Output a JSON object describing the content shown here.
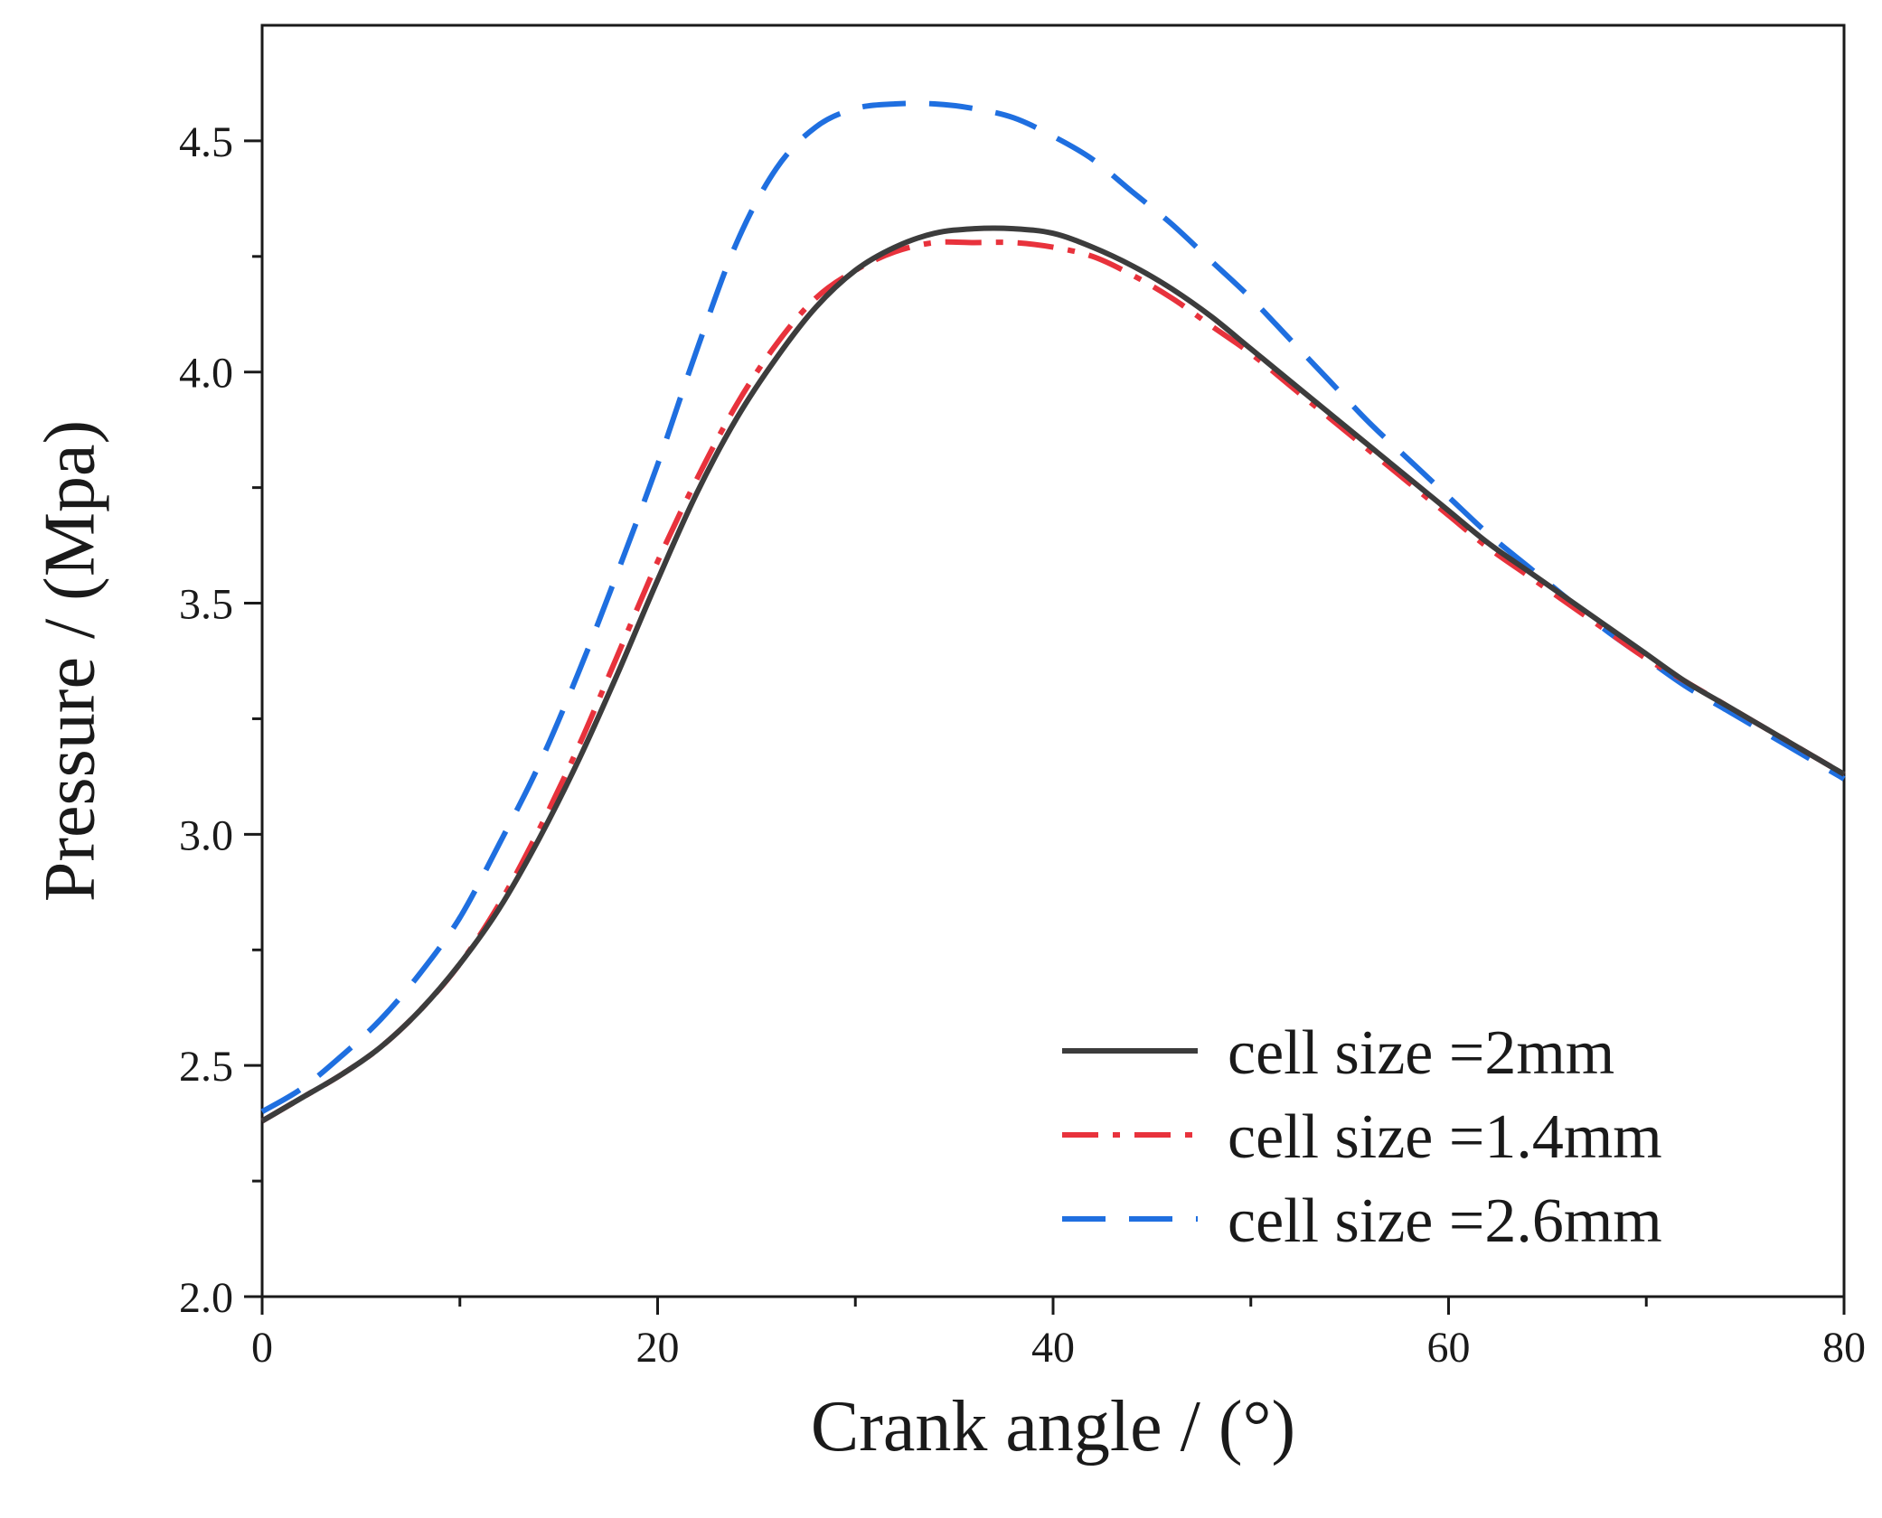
{
  "chart_data": {
    "type": "line",
    "title": "",
    "xlabel": "Crank angle / (°)",
    "ylabel": "Pressure / (Mpa)",
    "xlim": [
      0,
      80
    ],
    "ylim": [
      2.0,
      4.75
    ],
    "xticks": [
      0,
      20,
      40,
      60,
      80
    ],
    "xtick_labels": [
      "0",
      "20",
      "40",
      "60",
      "80"
    ],
    "yticks": [
      2.0,
      2.5,
      3.0,
      3.5,
      4.0,
      4.5
    ],
    "ytick_labels": [
      "2.0",
      "2.5",
      "3.0",
      "3.5",
      "4.0",
      "4.5"
    ],
    "grid": false,
    "legend_position": "bottom-right",
    "series": [
      {
        "name": "cell size =2mm",
        "color": "#3c3c3c",
        "style": "solid",
        "x": [
          0,
          2,
          4,
          6,
          8,
          10,
          12,
          14,
          16,
          18,
          20,
          22,
          24,
          26,
          28,
          30,
          32,
          34,
          36,
          38,
          40,
          42,
          44,
          46,
          48,
          50,
          52,
          54,
          56,
          58,
          60,
          62,
          64,
          66,
          68,
          70,
          72,
          74,
          76,
          78,
          80
        ],
        "values": [
          2.38,
          2.43,
          2.48,
          2.54,
          2.62,
          2.72,
          2.84,
          2.99,
          3.16,
          3.35,
          3.55,
          3.74,
          3.9,
          4.03,
          4.14,
          4.22,
          4.27,
          4.3,
          4.31,
          4.31,
          4.3,
          4.27,
          4.23,
          4.18,
          4.12,
          4.05,
          3.98,
          3.91,
          3.84,
          3.77,
          3.7,
          3.63,
          3.57,
          3.51,
          3.45,
          3.39,
          3.33,
          3.28,
          3.23,
          3.18,
          3.13
        ]
      },
      {
        "name": "cell size =1.4mm",
        "color": "#e8323c",
        "style": "dashdot",
        "x": [
          0,
          2,
          4,
          6,
          8,
          10,
          12,
          14,
          16,
          18,
          20,
          22,
          24,
          26,
          28,
          30,
          32,
          34,
          36,
          38,
          40,
          42,
          44,
          46,
          48,
          50,
          52,
          54,
          56,
          58,
          60,
          62,
          64,
          66,
          68,
          70,
          72,
          74,
          76,
          78,
          80
        ],
        "values": [
          2.38,
          2.43,
          2.48,
          2.54,
          2.62,
          2.72,
          2.85,
          3.01,
          3.19,
          3.39,
          3.59,
          3.77,
          3.93,
          4.06,
          4.16,
          4.22,
          4.26,
          4.28,
          4.28,
          4.28,
          4.27,
          4.25,
          4.21,
          4.16,
          4.1,
          4.04,
          3.97,
          3.9,
          3.83,
          3.76,
          3.69,
          3.62,
          3.56,
          3.5,
          3.44,
          3.38,
          3.33,
          3.28,
          3.23,
          3.18,
          3.13
        ]
      },
      {
        "name": "cell size =2.6mm",
        "color": "#1f6fe0",
        "style": "dashed",
        "x": [
          0,
          2,
          4,
          6,
          8,
          10,
          12,
          14,
          16,
          18,
          20,
          22,
          24,
          26,
          28,
          30,
          32,
          34,
          36,
          38,
          40,
          42,
          44,
          46,
          48,
          50,
          52,
          54,
          56,
          58,
          60,
          62,
          64,
          66,
          68,
          70,
          72,
          74,
          76,
          78,
          80
        ],
        "values": [
          2.4,
          2.45,
          2.52,
          2.6,
          2.7,
          2.82,
          2.98,
          3.15,
          3.35,
          3.57,
          3.8,
          4.05,
          4.28,
          4.44,
          4.53,
          4.57,
          4.58,
          4.58,
          4.57,
          4.55,
          4.51,
          4.46,
          4.39,
          4.32,
          4.24,
          4.16,
          4.07,
          3.98,
          3.89,
          3.81,
          3.73,
          3.65,
          3.58,
          3.51,
          3.44,
          3.38,
          3.32,
          3.27,
          3.22,
          3.17,
          3.12
        ]
      }
    ]
  }
}
